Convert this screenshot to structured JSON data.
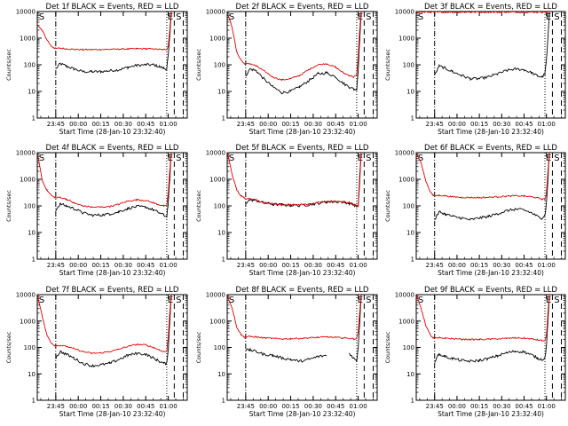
{
  "figure": {
    "panels": [
      {
        "title": "Det 1f BLACK = Events, RED = LLD",
        "xlabel": "Start Time (28-Jan-10 23:32:40)",
        "ylabel": "Counts/sec",
        "markers": [
          "S",
          "E",
          "S"
        ]
      },
      {
        "title": "Det 2f BLACK = Events, RED = LLD",
        "xlabel": "Start Time (28-Jan-10 23:32:40)",
        "ylabel": "Counts/sec",
        "markers": [
          "S",
          "E",
          "S"
        ]
      },
      {
        "title": "Det 3f BLACK = Events, RED = LLD",
        "xlabel": "Start Time (28-Jan-10 23:32:40)",
        "ylabel": "Counts/sec",
        "markers": [
          "S",
          "E",
          "S"
        ]
      },
      {
        "title": "Det 4f BLACK = Events, RED = LLD",
        "xlabel": "Start Time (28-Jan-10 23:32:40)",
        "ylabel": "Counts/sec",
        "markers": [
          "S",
          "E",
          "S"
        ]
      },
      {
        "title": "Det 5f BLACK = Events, RED = LLD",
        "xlabel": "Start Time (28-Jan-10 23:32:40)",
        "ylabel": "Counts/sec",
        "markers": [
          "S",
          "E",
          "S"
        ]
      },
      {
        "title": "Det 6f BLACK = Events, RED = LLD",
        "xlabel": "Start Time (28-Jan-10 23:32:40)",
        "ylabel": "Counts/sec",
        "markers": [
          "S",
          "E",
          "S"
        ]
      },
      {
        "title": "Det 7f BLACK = Events, RED = LLD",
        "xlabel": "Start Time (28-Jan-10 23:32:40)",
        "ylabel": "Counts/sec",
        "markers": [
          "S",
          "E",
          "S"
        ]
      },
      {
        "title": "Det 8f BLACK = Events, RED = LLD",
        "xlabel": "Start Time (28-Jan-10 23:32:40)",
        "ylabel": "Counts/sec",
        "markers": [
          "S",
          "E",
          "S"
        ]
      },
      {
        "title": "Det 9f BLACK = Events, RED = LLD",
        "xlabel": "Start Time (28-Jan-10 23:32:40)",
        "ylabel": "Counts/sec",
        "markers": [
          "S",
          "E",
          "S"
        ]
      }
    ]
  },
  "chart_data": {
    "type": "line",
    "layout": "3x3 grid",
    "grid": false,
    "legend": "none",
    "xscale": "time",
    "yscale": "log",
    "x_ticks": [
      "23:45",
      "00:00",
      "00:15",
      "00:30",
      "00:45",
      "01:00"
    ],
    "x_tick_times": [
      "23:45",
      "00:00",
      "00:15",
      "00:30",
      "00:45",
      "01:00"
    ],
    "xlim": [
      "23:32:40",
      "01:12:40"
    ],
    "y_ticks": [
      "1",
      "10",
      "100",
      "1000",
      "10000"
    ],
    "ylim": [
      1,
      10000
    ],
    "colors": {
      "events": "#000000",
      "lld": "#e00000"
    },
    "vertical_lines": {
      "dash_dot": "23:45",
      "dotted": "00:59",
      "dashed": [
        "01:04",
        "01:10"
      ]
    },
    "time_points": [
      "23:33",
      "23:36",
      "23:39",
      "23:42",
      "23:44",
      "23:45",
      "23:48",
      "23:52",
      "23:57",
      "00:03",
      "00:09",
      "00:15",
      "00:21",
      "00:27",
      "00:33",
      "00:39",
      "00:45",
      "00:50",
      "00:54",
      "00:57",
      "00:59",
      "01:00",
      "01:01",
      "01:02"
    ],
    "panels": [
      {
        "detector": "Det 1f",
        "series": [
          {
            "name": "BLACK = Events",
            "values": [
              null,
              null,
              null,
              null,
              null,
              70,
              110,
              90,
              70,
              55,
              55,
              55,
              60,
              65,
              80,
              95,
              100,
              100,
              85,
              75,
              70,
              220,
              1200,
              10000
            ]
          },
          {
            "name": "RED = LLD",
            "values": [
              3000,
              1900,
              900,
              500,
              430,
              410,
              420,
              400,
              380,
              370,
              370,
              375,
              380,
              385,
              395,
              400,
              400,
              390,
              380,
              370,
              380,
              500,
              2000,
              10000
            ]
          }
        ]
      },
      {
        "detector": "Det 2f",
        "series": [
          {
            "name": "BLACK = Events",
            "values": [
              null,
              null,
              null,
              null,
              null,
              40,
              70,
              60,
              30,
              15,
              9,
              10,
              15,
              25,
              45,
              50,
              35,
              20,
              15,
              12,
              12,
              60,
              900,
              10000
            ]
          },
          {
            "name": "RED = LLD",
            "values": [
              8000,
              2500,
              300,
              150,
              110,
              110,
              110,
              90,
              60,
              35,
              27,
              30,
              40,
              65,
              100,
              110,
              80,
              50,
              40,
              35,
              40,
              200,
              2000,
              10000
            ]
          }
        ]
      },
      {
        "detector": "Det 3f",
        "series": [
          {
            "name": "BLACK = Events",
            "values": [
              null,
              null,
              null,
              null,
              null,
              40,
              90,
              75,
              55,
              40,
              30,
              30,
              35,
              45,
              60,
              70,
              65,
              50,
              38,
              35,
              45,
              150,
              1000,
              10000
            ]
          },
          {
            "name": "RED = LLD",
            "values": [
              9500,
              9500,
              9500,
              9500,
              9500,
              9500,
              9500,
              9500,
              9500,
              9500,
              9500,
              9500,
              9500,
              9500,
              9500,
              9500,
              9500,
              9500,
              9500,
              9500,
              9500,
              9500,
              9500,
              10000
            ]
          }
        ]
      },
      {
        "detector": "Det 4f",
        "series": [
          {
            "name": "BLACK = Events",
            "values": [
              null,
              null,
              null,
              null,
              null,
              70,
              120,
              100,
              80,
              55,
              45,
              45,
              50,
              60,
              80,
              95,
              90,
              70,
              55,
              45,
              40,
              120,
              1000,
              10000
            ]
          },
          {
            "name": "RED = LLD",
            "values": [
              8000,
              900,
              400,
              250,
              210,
              200,
              210,
              180,
              130,
              100,
              90,
              90,
              95,
              115,
              150,
              170,
              160,
              130,
              110,
              100,
              100,
              300,
              2000,
              10000
            ]
          }
        ]
      },
      {
        "detector": "Det 5f",
        "series": [
          {
            "name": "BLACK = Events",
            "values": [
              null,
              null,
              null,
              null,
              null,
              130,
              170,
              160,
              130,
              115,
              110,
              105,
              105,
              110,
              125,
              140,
              145,
              140,
              125,
              110,
              95,
              90,
              800,
              10000
            ]
          },
          {
            "name": "RED = LLD",
            "values": [
              9000,
              1500,
              400,
              230,
              200,
              190,
              190,
              165,
              135,
              120,
              112,
              110,
              110,
              115,
              130,
              150,
              150,
              145,
              130,
              115,
              100,
              100,
              1500,
              10000
            ]
          }
        ]
      },
      {
        "detector": "Det 6f",
        "series": [
          {
            "name": "BLACK = Events",
            "values": [
              null,
              null,
              null,
              null,
              null,
              30,
              60,
              50,
              40,
              35,
              30,
              35,
              40,
              50,
              65,
              75,
              70,
              55,
              40,
              35,
              45,
              130,
              1000,
              10000
            ]
          },
          {
            "name": "RED = LLD",
            "values": [
              9000,
              4000,
              900,
              350,
              250,
              240,
              250,
              240,
              220,
              210,
              205,
              205,
              210,
              220,
              230,
              240,
              235,
              220,
              200,
              180,
              180,
              300,
              2000,
              10000
            ]
          }
        ]
      },
      {
        "detector": "Det 7f",
        "series": [
          {
            "name": "BLACK = Events",
            "values": [
              null,
              null,
              null,
              null,
              null,
              40,
              70,
              55,
              40,
              25,
              20,
              22,
              25,
              35,
              50,
              60,
              55,
              40,
              30,
              25,
              25,
              90,
              900,
              10000
            ]
          },
          {
            "name": "RED = LLD",
            "values": [
              9000,
              1500,
              300,
              150,
              120,
              115,
              120,
              110,
              90,
              70,
              60,
              62,
              70,
              85,
              110,
              130,
              125,
              100,
              80,
              70,
              70,
              250,
              2000,
              10000
            ]
          }
        ]
      },
      {
        "detector": "Det 8f",
        "series": [
          {
            "name": "BLACK = Events",
            "values": [
              null,
              null,
              null,
              null,
              null,
              80,
              80,
              70,
              55,
              50,
              40,
              35,
              30,
              35,
              45,
              50,
              null,
              null,
              60,
              40,
              30,
              100,
              900,
              10000
            ]
          },
          {
            "name": "RED = LLD",
            "values": [
              9000,
              3000,
              600,
              300,
              250,
              250,
              260,
              250,
              230,
              220,
              210,
              215,
              220,
              230,
              240,
              250,
              240,
              230,
              220,
              210,
              220,
              400,
              2000,
              10000
            ]
          }
        ]
      },
      {
        "detector": "Det 9f",
        "series": [
          {
            "name": "BLACK = Events",
            "values": [
              null,
              null,
              null,
              null,
              null,
              30,
              55,
              45,
              38,
              32,
              30,
              32,
              38,
              48,
              62,
              72,
              68,
              52,
              40,
              35,
              40,
              120,
              1000,
              10000
            ]
          },
          {
            "name": "RED = LLD",
            "values": [
              9000,
              3000,
              700,
              300,
              230,
              220,
              230,
              225,
              215,
              205,
              200,
              200,
              205,
              210,
              220,
              230,
              225,
              210,
              195,
              180,
              180,
              300,
              2000,
              10000
            ]
          }
        ]
      }
    ]
  }
}
